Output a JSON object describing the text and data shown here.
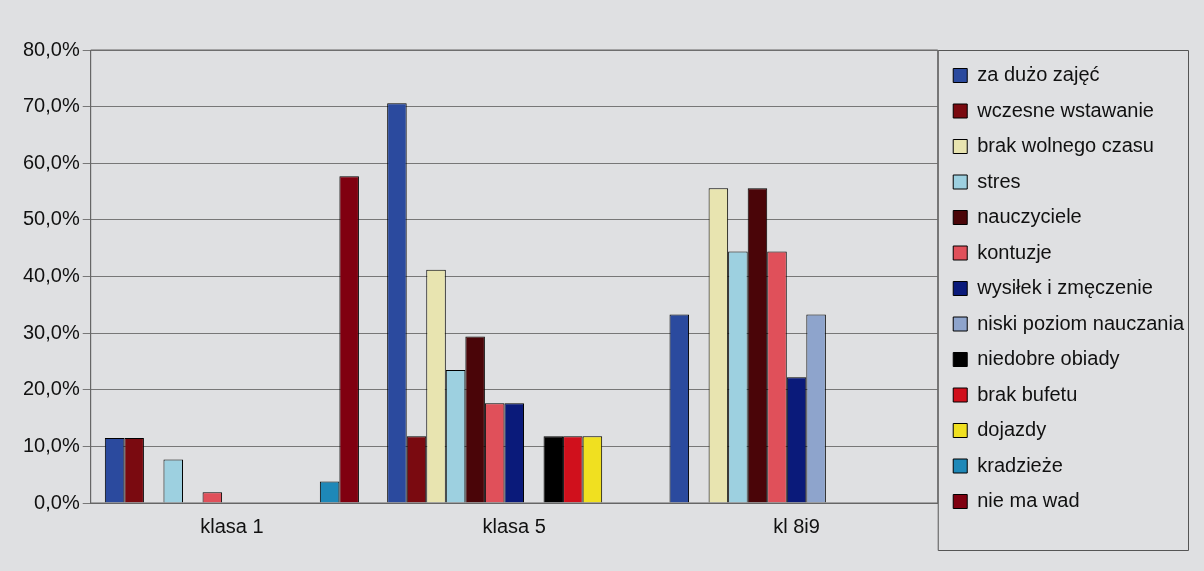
{
  "chart_data": {
    "type": "bar",
    "categories": [
      "klasa 1",
      "klasa 5",
      "kl 8i9"
    ],
    "series": [
      {
        "name": "za dużo zajęć",
        "color": "#2b4a9e",
        "values": [
          11.5,
          70.6,
          33.3
        ]
      },
      {
        "name": "wczesne wstawanie",
        "color": "#7a0a10",
        "values": [
          11.5,
          11.8,
          0
        ]
      },
      {
        "name": "brak wolnego czasu",
        "color": "#e8e4b0",
        "values": [
          0,
          41.2,
          55.6
        ]
      },
      {
        "name": "stres",
        "color": "#9dd0e0",
        "values": [
          7.7,
          23.5,
          44.4
        ]
      },
      {
        "name": "nauczyciele",
        "color": "#4a0508",
        "values": [
          0,
          29.4,
          55.6
        ]
      },
      {
        "name": "kontuzje",
        "color": "#e0505a",
        "values": [
          1.9,
          17.6,
          44.4
        ]
      },
      {
        "name": "wysiłek i zmęczenie",
        "color": "#0a1a7a",
        "values": [
          0,
          17.6,
          22.2
        ]
      },
      {
        "name": "niski poziom nauczania",
        "color": "#8ea4cc",
        "values": [
          0,
          0,
          33.3
        ]
      },
      {
        "name": "niedobre obiady",
        "color": "#000000",
        "values": [
          0,
          11.8,
          0
        ]
      },
      {
        "name": "brak bufetu",
        "color": "#d0101c",
        "values": [
          0,
          11.8,
          0
        ]
      },
      {
        "name": "dojazdy",
        "color": "#f0e020",
        "values": [
          0,
          11.8,
          0
        ]
      },
      {
        "name": "kradzieże",
        "color": "#1e88b8",
        "values": [
          3.8,
          0,
          0
        ]
      },
      {
        "name": "nie ma wad",
        "color": "#800010",
        "values": [
          57.7,
          0,
          0
        ]
      }
    ],
    "ylim": [
      0,
      80
    ],
    "yticks": [
      {
        "value": 0,
        "label": "0,0%"
      },
      {
        "value": 10,
        "label": "10,0%"
      },
      {
        "value": 20,
        "label": "20,0%"
      },
      {
        "value": 30,
        "label": "30,0%"
      },
      {
        "value": 40,
        "label": "40,0%"
      },
      {
        "value": 50,
        "label": "50,0%"
      },
      {
        "value": 60,
        "label": "60,0%"
      },
      {
        "value": 70,
        "label": "70,0%"
      },
      {
        "value": 80,
        "label": "80,0%"
      }
    ],
    "grid": "y",
    "legend": "right"
  }
}
